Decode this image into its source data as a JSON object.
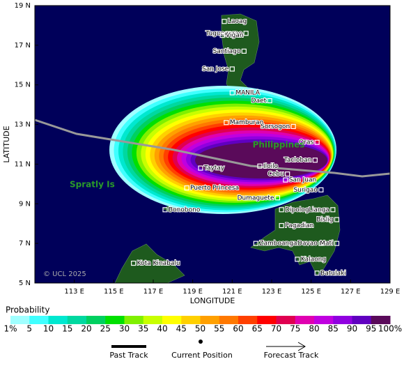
{
  "map": {
    "axes": {
      "x_title": "LONGITUDE",
      "y_title": "LATITUDE",
      "xlim": [
        111,
        129
      ],
      "ylim": [
        5,
        19
      ],
      "xticks": [
        {
          "value": 113,
          "label": "113 E"
        },
        {
          "value": 115,
          "label": "115 E"
        },
        {
          "value": 117,
          "label": "117 E"
        },
        {
          "value": 119,
          "label": "119 E"
        },
        {
          "value": 121,
          "label": "121 E"
        },
        {
          "value": 123,
          "label": "123 E"
        },
        {
          "value": 125,
          "label": "125 E"
        },
        {
          "value": 127,
          "label": "127 E"
        },
        {
          "value": 129,
          "label": "129 E"
        }
      ],
      "yticks": [
        {
          "value": 5,
          "label": "5 N"
        },
        {
          "value": 7,
          "label": "7 N"
        },
        {
          "value": 9,
          "label": "9 N"
        },
        {
          "value": 11,
          "label": "11 N"
        },
        {
          "value": 13,
          "label": "13 N"
        },
        {
          "value": 15,
          "label": "15 N"
        },
        {
          "value": 17,
          "label": "17 N"
        },
        {
          "value": 19,
          "label": "19 N"
        }
      ]
    },
    "cities": [
      {
        "name": "Laoag",
        "lon": 120.6,
        "lat": 18.2
      },
      {
        "name": "Tuguegarao",
        "lon": 121.7,
        "lat": 17.6
      },
      {
        "name": "Vigan",
        "lon": 120.5,
        "lat": 17.5
      },
      {
        "name": "Santiago",
        "lon": 121.6,
        "lat": 16.7
      },
      {
        "name": "San Jose",
        "lon": 121.0,
        "lat": 15.8
      },
      {
        "name": "MANILA",
        "lon": 121.0,
        "lat": 14.6
      },
      {
        "name": "Daet",
        "lon": 122.9,
        "lat": 14.2
      },
      {
        "name": "Mamburao",
        "lon": 120.7,
        "lat": 13.1
      },
      {
        "name": "Sorsogon",
        "lon": 124.1,
        "lat": 12.9
      },
      {
        "name": "Oras",
        "lon": 125.3,
        "lat": 12.1
      },
      {
        "name": "Tacloban",
        "lon": 125.2,
        "lat": 11.2
      },
      {
        "name": "Taytay",
        "lon": 119.4,
        "lat": 10.8
      },
      {
        "name": "Iloilo",
        "lon": 122.4,
        "lat": 10.9
      },
      {
        "name": "Cebu",
        "lon": 123.8,
        "lat": 10.5
      },
      {
        "name": "San Juan",
        "lon": 123.7,
        "lat": 10.2
      },
      {
        "name": "Surigao",
        "lon": 125.5,
        "lat": 9.7
      },
      {
        "name": "Puerto Princesa",
        "lon": 118.7,
        "lat": 9.8
      },
      {
        "name": "Dumaguete",
        "lon": 123.3,
        "lat": 9.3
      },
      {
        "name": "Lianga",
        "lon": 126.1,
        "lat": 8.7
      },
      {
        "name": "Bonobono",
        "lon": 117.6,
        "lat": 8.7
      },
      {
        "name": "Dipolog",
        "lon": 123.5,
        "lat": 8.7
      },
      {
        "name": "Bislig",
        "lon": 126.3,
        "lat": 8.2
      },
      {
        "name": "Pagadian",
        "lon": 123.5,
        "lat": 7.9
      },
      {
        "name": "Zamboanga",
        "lon": 122.2,
        "lat": 7.0
      },
      {
        "name": "Davao",
        "lon": 125.5,
        "lat": 7.0
      },
      {
        "name": "Mati",
        "lon": 126.3,
        "lat": 7.0
      },
      {
        "name": "Kota Kinabalu",
        "lon": 116.0,
        "lat": 6.0
      },
      {
        "name": "Kalaong",
        "lon": 124.3,
        "lat": 6.2
      },
      {
        "name": "Batulaki",
        "lon": 125.3,
        "lat": 5.5
      }
    ],
    "region_labels": [
      "Philippines",
      "Spratly Is"
    ],
    "copyright": "© UCL 2025"
  },
  "legend": {
    "title": "Probability",
    "levels": [
      {
        "value": 1,
        "label": "1%"
      },
      5,
      10,
      15,
      20,
      25,
      30,
      35,
      40,
      45,
      50,
      55,
      60,
      65,
      70,
      75,
      80,
      85,
      90,
      95,
      {
        "value": 100,
        "label": "100%"
      }
    ],
    "colors": [
      "#a0ffff",
      "#40ffff",
      "#00e8d0",
      "#00d8a0",
      "#00d060",
      "#00e000",
      "#80f000",
      "#c8ff00",
      "#ffff00",
      "#ffd000",
      "#ffa000",
      "#ff7800",
      "#ff4000",
      "#ff0000",
      "#e00050",
      "#e000b0",
      "#c000e0",
      "#9000e0",
      "#6000c0",
      "#5a0a5a"
    ],
    "items": [
      "Past Track",
      "Current Position",
      "Forecast Track"
    ]
  }
}
